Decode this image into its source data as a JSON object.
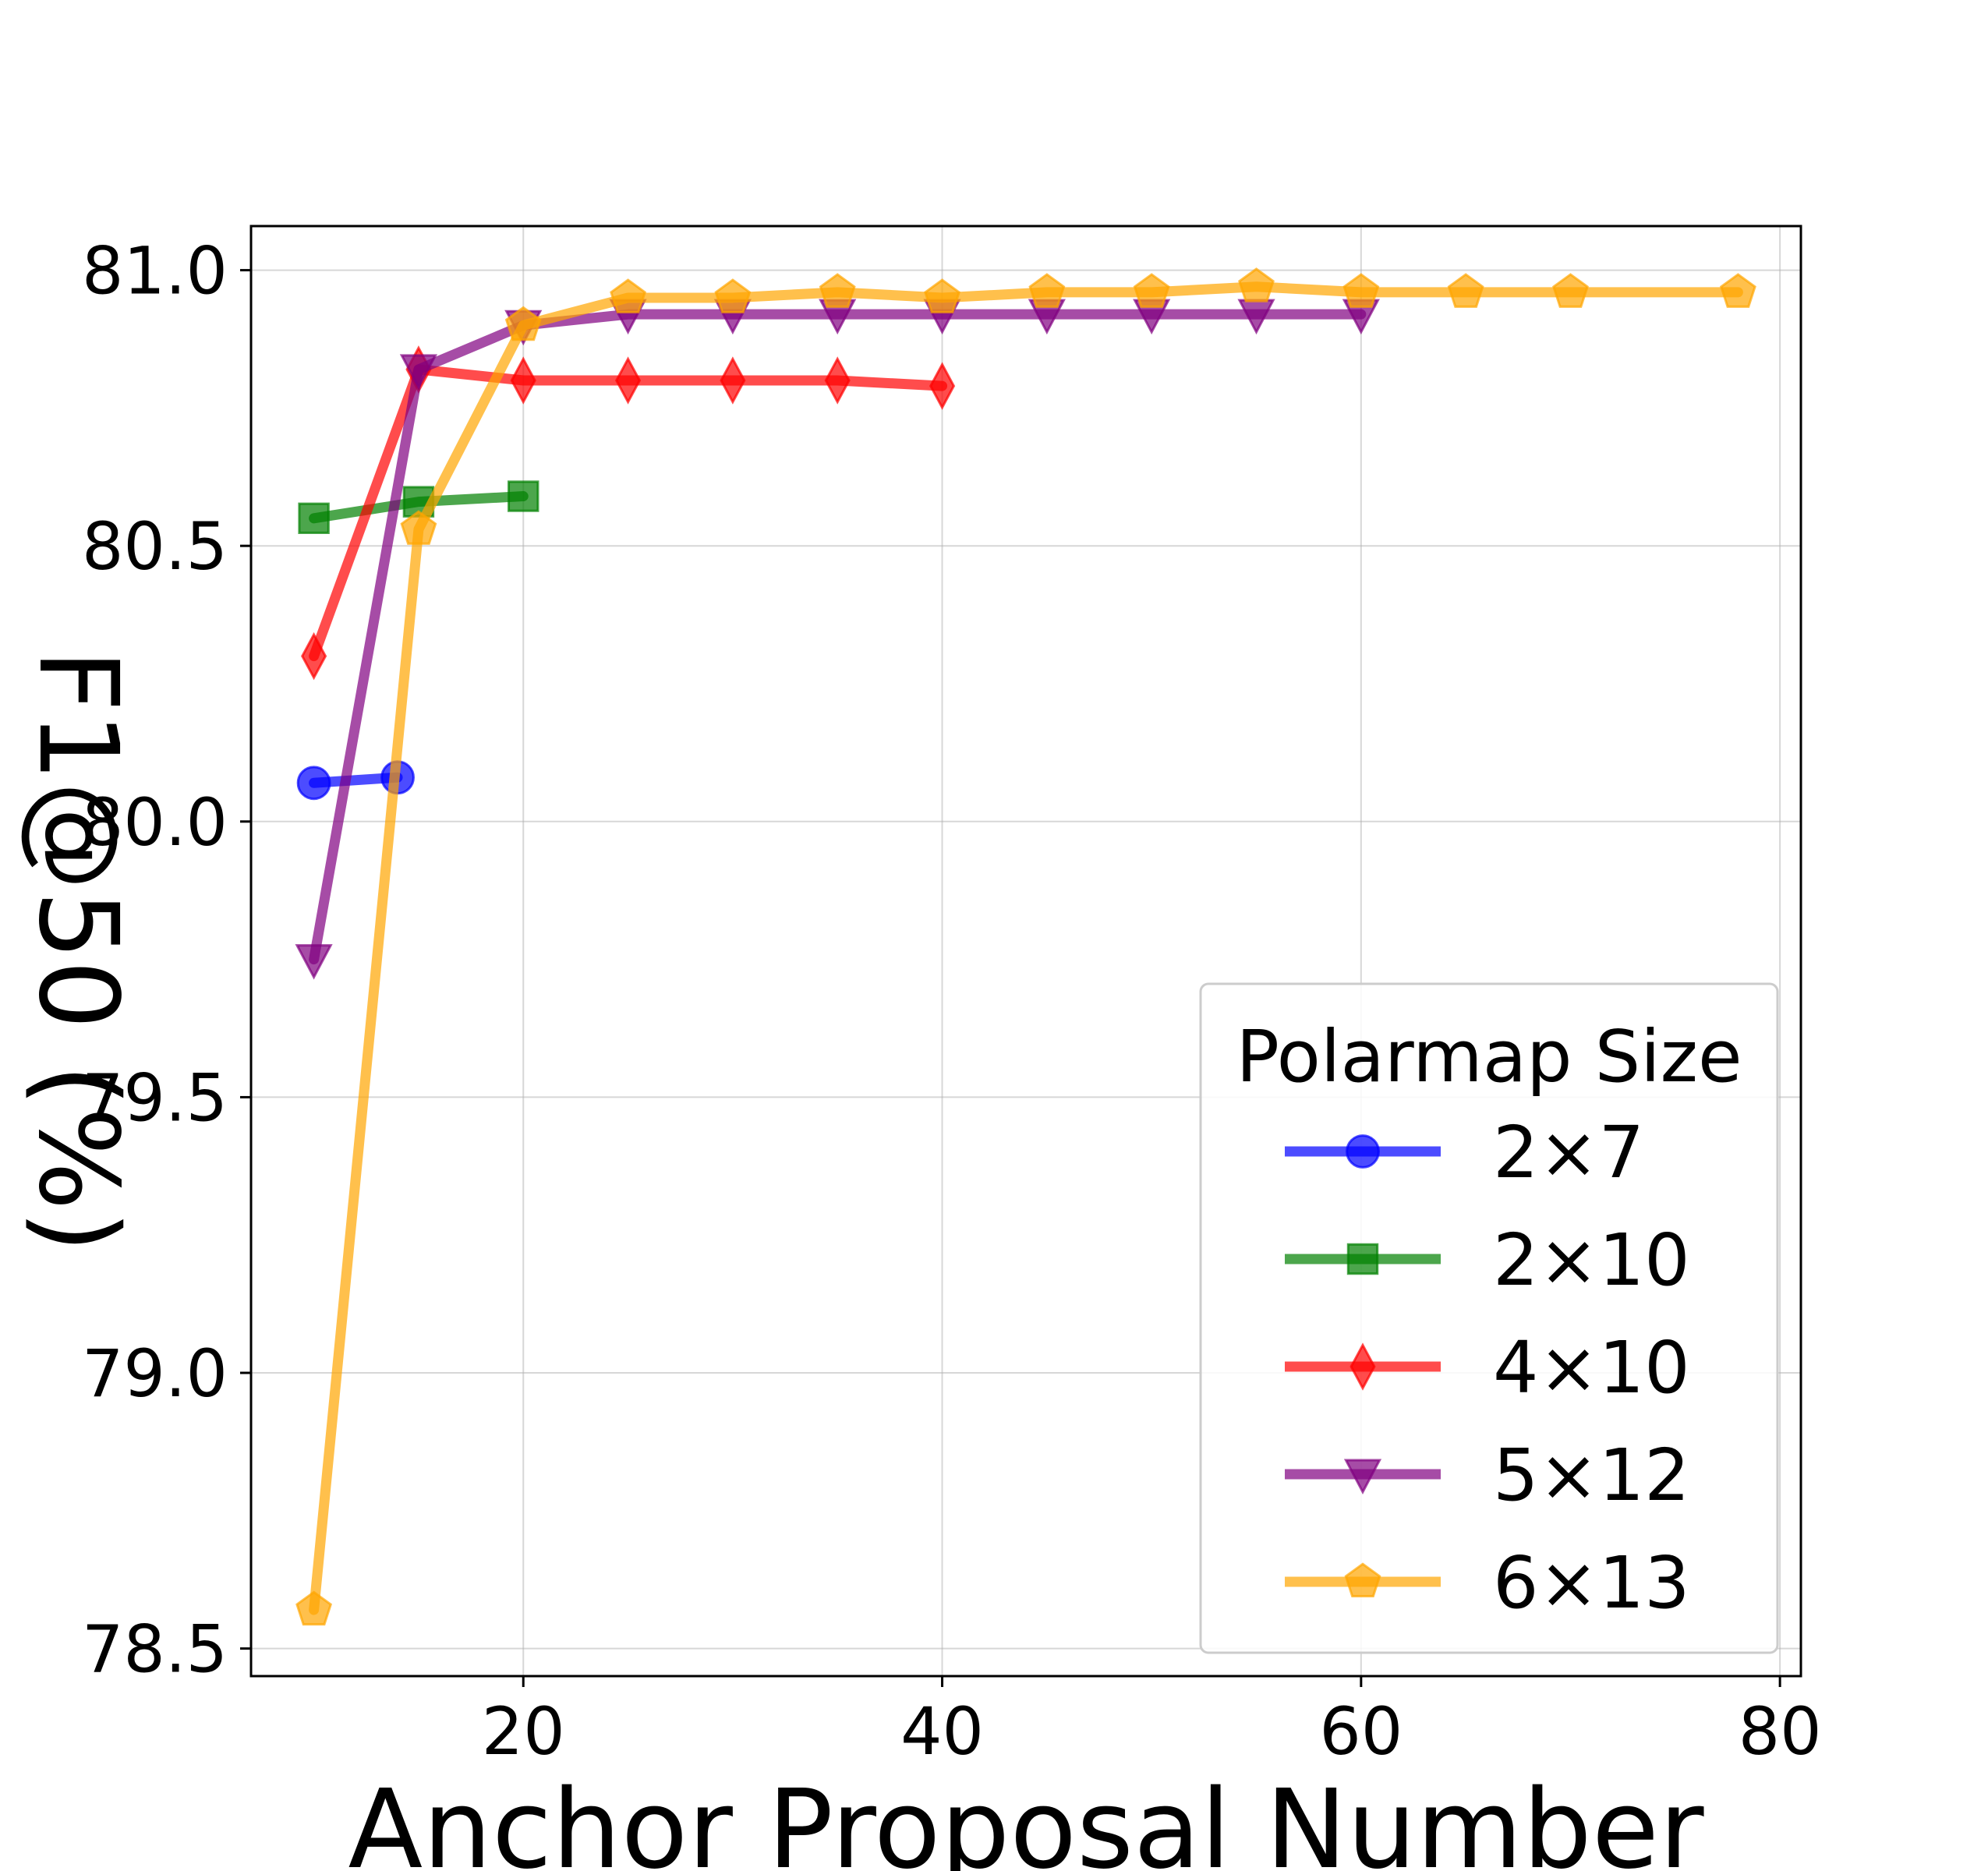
{
  "chart_data": {
    "type": "line",
    "xlabel": "Anchor Proposal Number",
    "ylabel": "F1@50 (%)",
    "xlim": [
      7,
      81
    ],
    "ylim": [
      78.45,
      81.08
    ],
    "xticks": [
      20,
      40,
      60,
      80
    ],
    "yticks": [
      78.5,
      79.0,
      79.5,
      80.0,
      80.5,
      81.0
    ],
    "xtick_labels": [
      "20",
      "40",
      "60",
      "80"
    ],
    "ytick_labels": [
      "78.5",
      "79.0",
      "79.5",
      "80.0",
      "80.5",
      "81.0"
    ],
    "grid": true,
    "legend": {
      "title": "Polarmap Size",
      "placement": "lower-right"
    },
    "series": [
      {
        "name": "2×7",
        "color": "#0000ff",
        "marker": "circle",
        "x": [
          10,
          14
        ],
        "y": [
          80.07,
          80.08
        ]
      },
      {
        "name": "2×10",
        "color": "#008000",
        "marker": "square",
        "x": [
          10,
          15,
          20
        ],
        "y": [
          80.55,
          80.58,
          80.59
        ]
      },
      {
        "name": "4×10",
        "color": "#ff0000",
        "marker": "diamond",
        "x": [
          10,
          15,
          20,
          25,
          30,
          35,
          40
        ],
        "y": [
          80.3,
          80.82,
          80.8,
          80.8,
          80.8,
          80.8,
          80.79
        ]
      },
      {
        "name": "5×12",
        "color": "#800080",
        "marker": "triangle-down",
        "x": [
          10,
          15,
          20,
          25,
          30,
          35,
          40,
          45,
          50,
          55,
          60
        ],
        "y": [
          79.75,
          80.82,
          80.9,
          80.92,
          80.92,
          80.92,
          80.92,
          80.92,
          80.92,
          80.92,
          80.92
        ]
      },
      {
        "name": "6×13",
        "color": "#ffa500",
        "marker": "pentagon",
        "x": [
          10,
          15,
          20,
          25,
          30,
          35,
          40,
          45,
          50,
          55,
          60,
          65,
          70,
          78
        ],
        "y": [
          78.57,
          80.53,
          80.9,
          80.95,
          80.95,
          80.96,
          80.95,
          80.96,
          80.96,
          80.97,
          80.96,
          80.96,
          80.96,
          80.96
        ]
      }
    ]
  }
}
